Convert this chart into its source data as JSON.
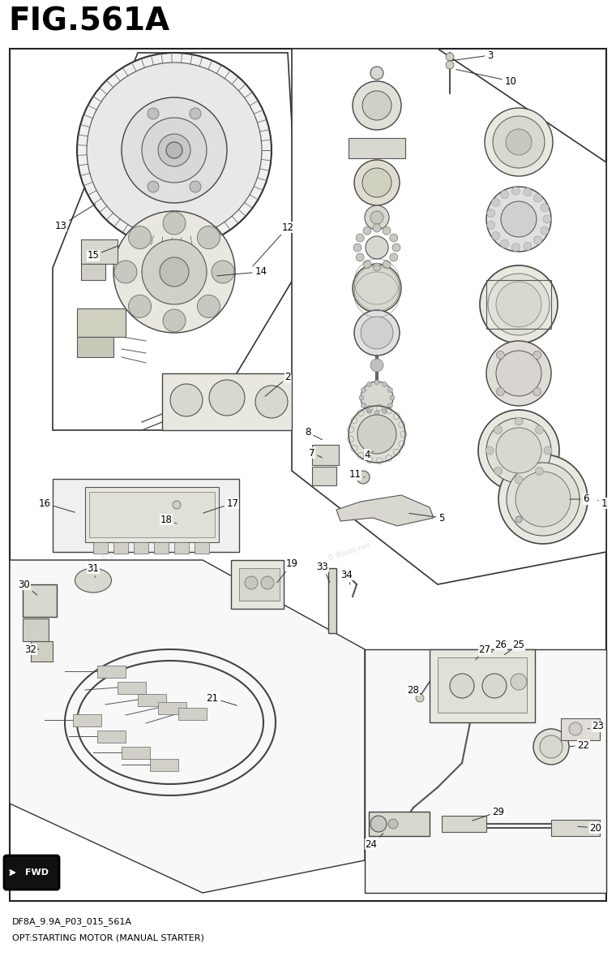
{
  "title": "FIG.561A",
  "subtitle_line1": "DF8A_9.9A_P03_015_561A",
  "subtitle_line2": "OPT:STARTING MOTOR (MANUAL STARTER)",
  "watermark": "© Boats.net",
  "bg_color": "#ffffff",
  "fig_width": 7.6,
  "fig_height": 12.0,
  "title_fontsize": 28,
  "label_fontsize": 8.5,
  "subtitle_fontsize": 8
}
